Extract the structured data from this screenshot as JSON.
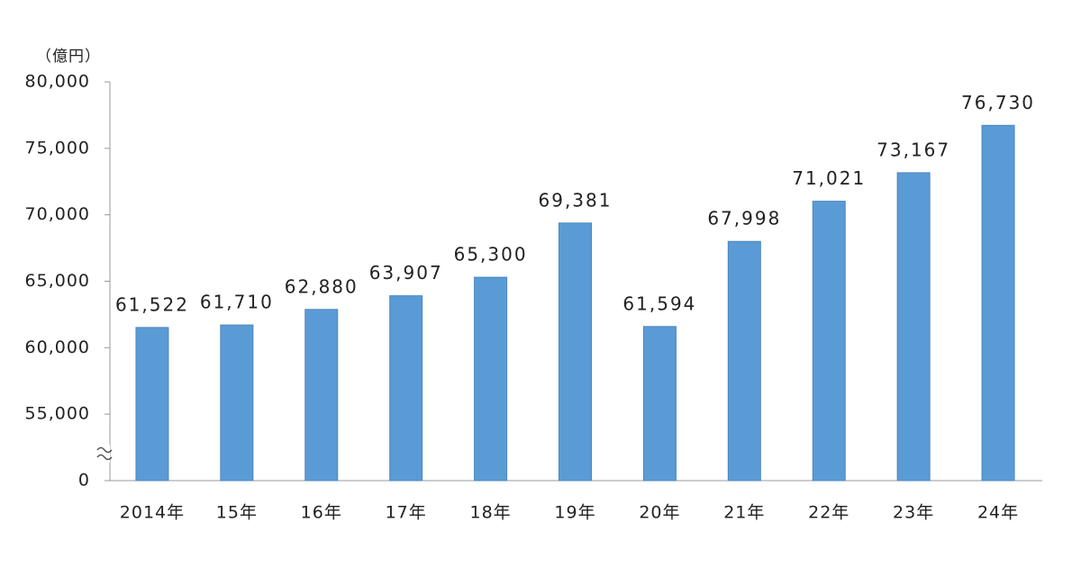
{
  "chart_data": {
    "type": "bar",
    "unit_label": "（億円）",
    "categories": [
      "2014年",
      "15年",
      "16年",
      "17年",
      "18年",
      "19年",
      "20年",
      "21年",
      "22年",
      "23年",
      "24年"
    ],
    "values": [
      61522,
      61710,
      62880,
      63907,
      65300,
      69381,
      61594,
      67998,
      71021,
      73167,
      76730
    ],
    "value_labels": [
      "61,522",
      "61,710",
      "62,880",
      "63,907",
      "65,300",
      "69,381",
      "61,594",
      "67,998",
      "71,021",
      "73,167",
      "76,730"
    ],
    "color": "#5b9bd5",
    "ylim": [
      0,
      80000
    ],
    "axis_break": [
      0,
      50000
    ],
    "yticks": [
      {
        "value": 0,
        "label": "0"
      },
      {
        "value": 55000,
        "label": "55,000"
      },
      {
        "value": 60000,
        "label": "60,000"
      },
      {
        "value": 65000,
        "label": "65,000"
      },
      {
        "value": 70000,
        "label": "70,000"
      },
      {
        "value": 75000,
        "label": "75,000"
      },
      {
        "value": 80000,
        "label": "80,000"
      }
    ],
    "grid": false
  }
}
